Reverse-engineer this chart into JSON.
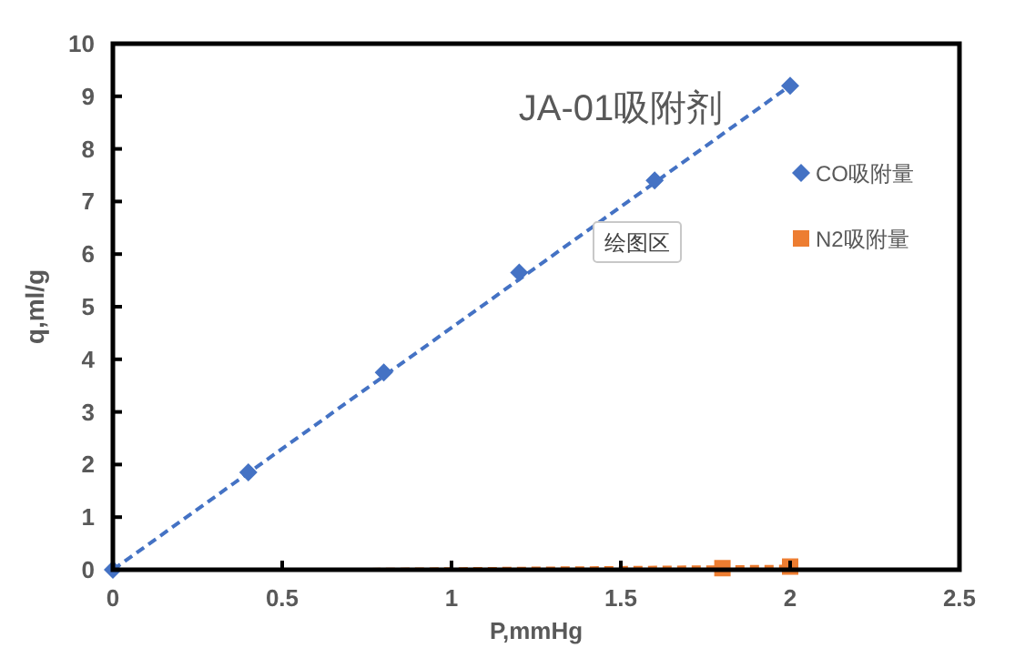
{
  "chart_data": {
    "type": "scatter",
    "title": "JA-01吸附剂",
    "xlabel": "P,mmHg",
    "ylabel": "q,ml/g",
    "xlim": [
      0,
      2.5
    ],
    "xticks": [
      0,
      0.5,
      1,
      1.5,
      2,
      2.5
    ],
    "ylim": [
      0,
      10
    ],
    "yticks": [
      0,
      1,
      2,
      3,
      4,
      5,
      6,
      7,
      8,
      9,
      10
    ],
    "grid": false,
    "legend": "right",
    "annotations": [
      "绘图区"
    ],
    "series": [
      {
        "name": "CO吸附量",
        "type": "scatter",
        "marker": "diamond",
        "color": "#4472c4",
        "x": [
          0,
          0.4,
          0.8,
          1.2,
          1.6,
          2.0
        ],
        "values": [
          0,
          1.85,
          3.75,
          5.65,
          7.4,
          9.2
        ]
      },
      {
        "name": "N2吸附量",
        "type": "scatter",
        "marker": "square",
        "color": "#ed7d31",
        "x": [
          1.8,
          2.0
        ],
        "values": [
          0.03,
          0.06
        ]
      },
      {
        "type": "line",
        "line_style": "dashed",
        "marker": "none",
        "color": "#4472c4",
        "x": [
          0,
          2.0
        ],
        "values": [
          0,
          9.2
        ]
      },
      {
        "type": "line",
        "line_style": "dashed",
        "marker": "none",
        "color": "#ed7d31",
        "x": [
          0.72,
          2.0
        ],
        "values": [
          0,
          0.06
        ]
      }
    ]
  }
}
